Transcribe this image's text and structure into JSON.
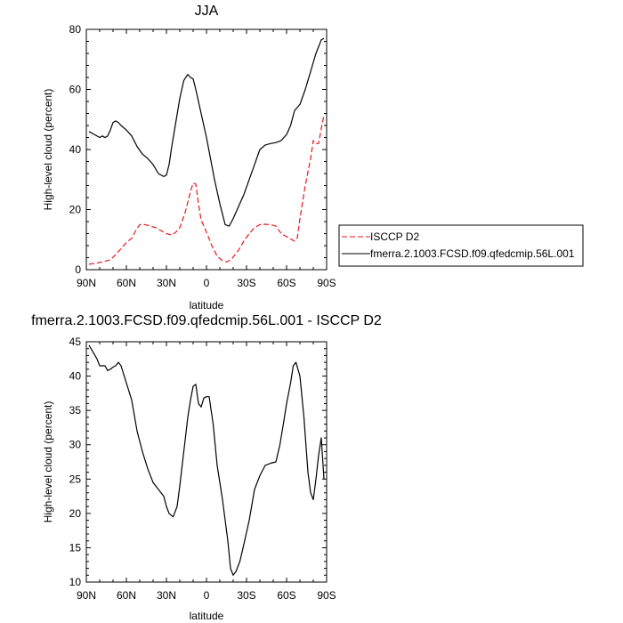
{
  "chart_data": [
    {
      "type": "line",
      "title": "JJA",
      "xlabel": "latitude",
      "ylabel": "High-level cloud (percent)",
      "xlim": [
        90,
        -90
      ],
      "ylim": [
        0,
        80
      ],
      "x_tick_values": [
        90,
        60,
        30,
        0,
        -30,
        -60,
        -90
      ],
      "x_tick_labels": [
        "90N",
        "60N",
        "30N",
        "0",
        "30S",
        "60S",
        "90S"
      ],
      "y_tick_values": [
        0,
        20,
        40,
        60,
        80
      ],
      "y_tick_labels": [
        "0",
        "20",
        "40",
        "60",
        "80"
      ],
      "legend_position": "right",
      "series": [
        {
          "name": "ISCCP D2",
          "color": "#e8161b",
          "dash": "dashed",
          "x": [
            88,
            82,
            76,
            72,
            68,
            64,
            60,
            56,
            53,
            50,
            46,
            42,
            38,
            34,
            30,
            26,
            23,
            20,
            16,
            12,
            10,
            8,
            6,
            4,
            0,
            -4,
            -8,
            -12,
            -15,
            -18,
            -20,
            -24,
            -28,
            -32,
            -36,
            -40,
            -44,
            -48,
            -52,
            -56,
            -60,
            -64,
            -66,
            -68,
            -70,
            -74,
            -78,
            -80,
            -82,
            -84,
            -86,
            -88
          ],
          "y": [
            1.8,
            2.2,
            2.8,
            3.3,
            5.0,
            7.0,
            9.0,
            10.5,
            13.0,
            15.0,
            15.0,
            14.5,
            14.0,
            13.0,
            12.0,
            11.5,
            12.5,
            14.0,
            19.0,
            26.0,
            28.8,
            28.5,
            22.0,
            16.5,
            12.5,
            8.0,
            4.5,
            3.0,
            2.6,
            3.2,
            4.2,
            6.5,
            9.5,
            12.0,
            14.0,
            15.0,
            15.1,
            15.0,
            14.5,
            12.0,
            11.0,
            10.0,
            9.5,
            10.5,
            17.0,
            28.0,
            37.0,
            43.0,
            42.0,
            42.0,
            47.0,
            51.5
          ]
        },
        {
          "name": "fmerra.2.1003.FCSD.f09.qfedcmip.56L.001",
          "color": "#000000",
          "dash": "solid",
          "x": [
            88,
            84,
            80,
            78,
            76,
            74,
            72,
            70,
            68,
            66,
            64,
            60,
            56,
            52,
            48,
            44,
            40,
            36,
            32,
            30,
            28,
            26,
            23,
            20,
            17,
            14,
            12,
            10,
            8,
            6,
            4,
            2,
            0,
            -3,
            -6,
            -10,
            -14,
            -17,
            -20,
            -24,
            -28,
            -32,
            -36,
            -40,
            -44,
            -48,
            -52,
            -56,
            -60,
            -63,
            -66,
            -70,
            -74,
            -78,
            -82,
            -86,
            -88
          ],
          "y": [
            46.0,
            45.0,
            44.0,
            44.5,
            44.0,
            44.5,
            46.5,
            49.0,
            49.5,
            49.0,
            48.0,
            46.5,
            44.5,
            41.0,
            38.5,
            37.0,
            35.0,
            32.0,
            31.0,
            31.5,
            35.0,
            41.0,
            49.0,
            57.0,
            63.0,
            65.0,
            64.0,
            63.5,
            60.0,
            56.0,
            52.0,
            48.0,
            44.0,
            37.0,
            30.0,
            22.0,
            15.0,
            14.5,
            17.0,
            21.0,
            25.0,
            30.0,
            35.0,
            40.0,
            41.5,
            42.0,
            42.3,
            43.0,
            45.0,
            48.0,
            53.0,
            55.0,
            60.0,
            66.0,
            72.0,
            76.5,
            77.0
          ]
        }
      ]
    },
    {
      "type": "line",
      "title": "fmerra.2.1003.FCSD.f09.qfedcmip.56L.001 - ISCCP D2",
      "xlabel": "latitude",
      "ylabel": "High-level cloud (percent)",
      "xlim": [
        90,
        -90
      ],
      "ylim": [
        10,
        45
      ],
      "x_tick_values": [
        90,
        60,
        30,
        0,
        -30,
        -60,
        -90
      ],
      "x_tick_labels": [
        "90N",
        "60N",
        "30N",
        "0",
        "30S",
        "60S",
        "90S"
      ],
      "y_tick_values": [
        10,
        15,
        20,
        25,
        30,
        35,
        40,
        45
      ],
      "y_tick_labels": [
        "10",
        "15",
        "20",
        "25",
        "30",
        "35",
        "40",
        "45"
      ],
      "series": [
        {
          "color": "#000000",
          "dash": "solid",
          "x": [
            88,
            85,
            82,
            80,
            78,
            76,
            74,
            72,
            70,
            68,
            66,
            64,
            60,
            56,
            52,
            48,
            44,
            40,
            36,
            32,
            30,
            28,
            25,
            22,
            20,
            17,
            14,
            12,
            10,
            8,
            6,
            4,
            2,
            0,
            -2,
            -5,
            -8,
            -12,
            -16,
            -18,
            -20,
            -22,
            -25,
            -28,
            -32,
            -36,
            -40,
            -44,
            -48,
            -52,
            -55,
            -58,
            -60,
            -63,
            -65,
            -67,
            -70,
            -73,
            -76,
            -78,
            -80,
            -82,
            -84,
            -86,
            -88
          ],
          "y": [
            44.5,
            43.5,
            42.5,
            41.5,
            41.5,
            41.5,
            40.8,
            41.0,
            41.3,
            41.5,
            42.0,
            41.5,
            39.0,
            36.5,
            32.0,
            29.0,
            26.5,
            24.5,
            23.5,
            22.5,
            21.0,
            20.0,
            19.5,
            21.0,
            24.0,
            29.0,
            34.0,
            36.5,
            38.5,
            38.8,
            36.0,
            35.5,
            36.8,
            37.0,
            37.0,
            33.0,
            27.0,
            22.0,
            16.0,
            12.0,
            11.0,
            11.5,
            13.0,
            15.5,
            19.0,
            23.5,
            25.5,
            27.0,
            27.3,
            27.5,
            30.0,
            33.5,
            36.0,
            39.0,
            41.5,
            42.0,
            40.0,
            34.0,
            26.0,
            23.0,
            22.0,
            25.0,
            28.5,
            31.0,
            25.0
          ]
        }
      ]
    }
  ]
}
